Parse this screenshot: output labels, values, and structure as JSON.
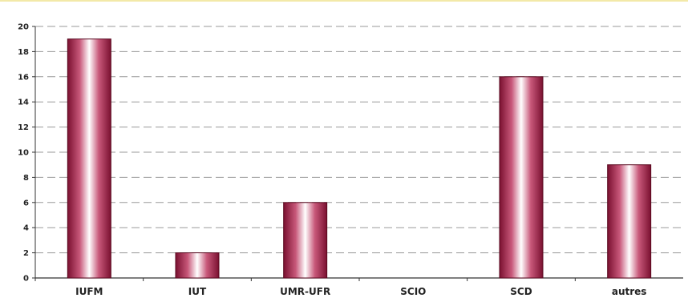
{
  "chart_data": {
    "type": "bar",
    "categories": [
      "IUFM",
      "IUT",
      "UMR-UFR",
      "SCIO",
      "SCD",
      "autres"
    ],
    "values": [
      19,
      2,
      6,
      0,
      16,
      9
    ],
    "title": "",
    "xlabel": "",
    "ylabel": "",
    "ylim": [
      0,
      20
    ],
    "yticks": [
      0,
      2,
      4,
      6,
      8,
      10,
      12,
      14,
      16,
      18,
      20
    ],
    "grid": true,
    "legend": "none",
    "bar_color": "#b03050",
    "bar_highlight": "#ffffff"
  }
}
